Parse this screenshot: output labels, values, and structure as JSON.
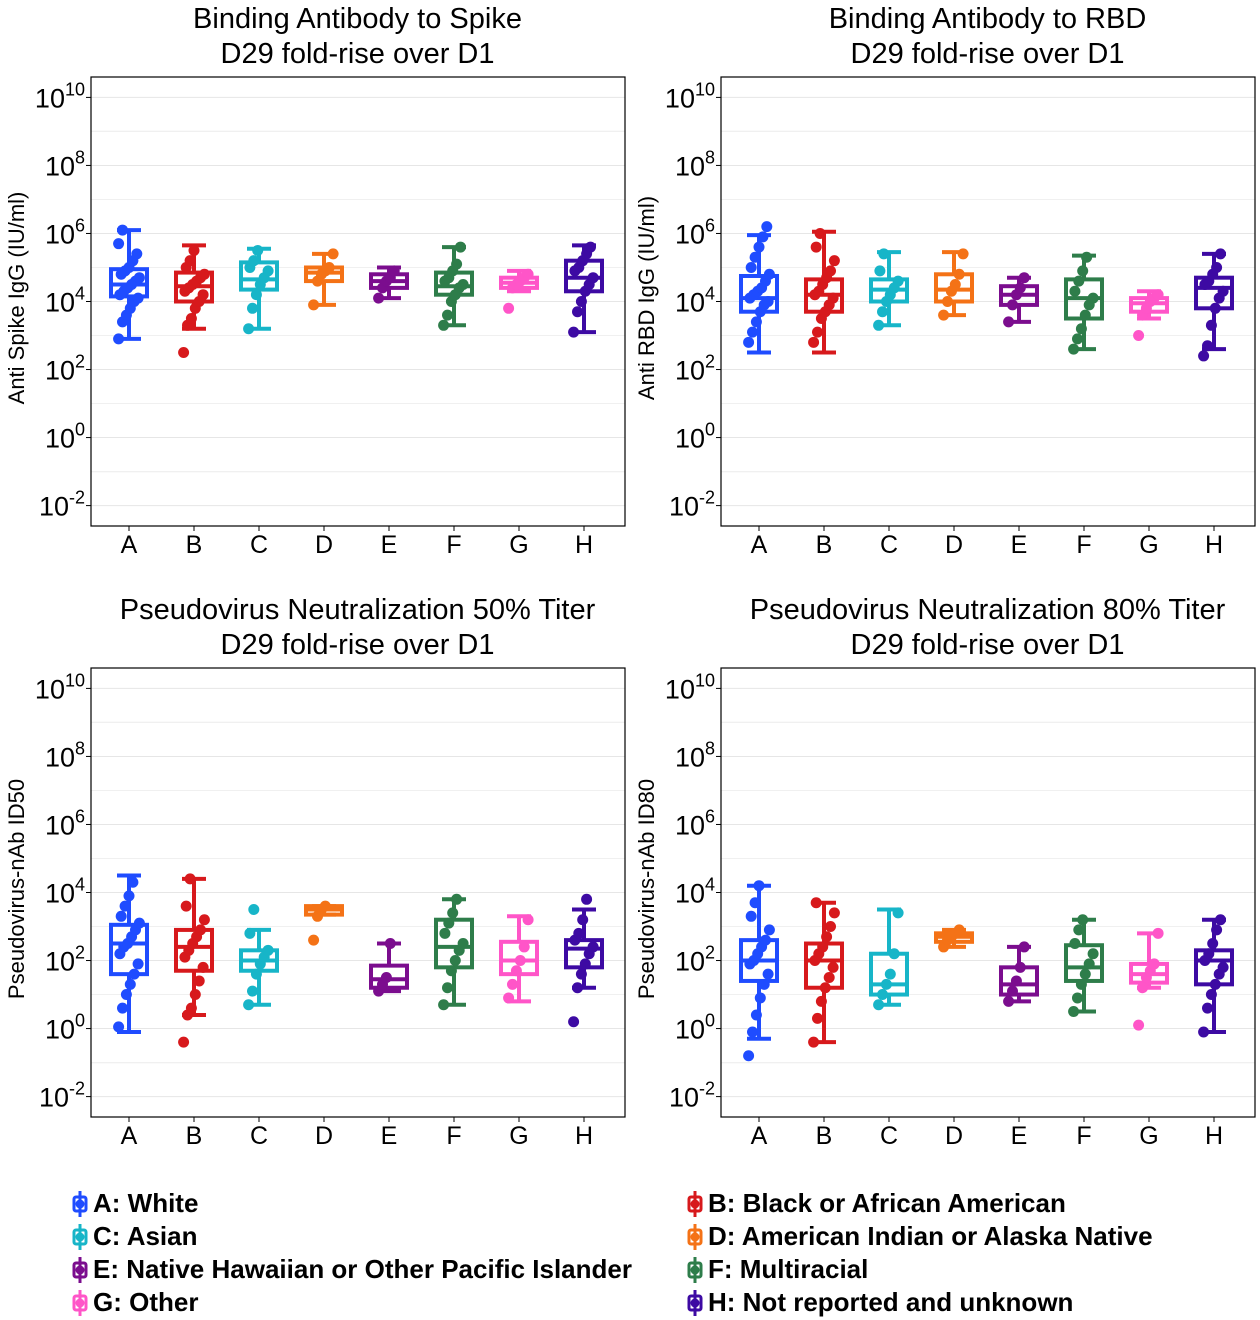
{
  "categories": [
    "A",
    "B",
    "C",
    "D",
    "E",
    "F",
    "G",
    "H"
  ],
  "colors": [
    "#1f4cff",
    "#d7191c",
    "#17b5c8",
    "#f47216",
    "#7b0d8e",
    "#2e7d4a",
    "#ff55c8",
    "#3d0aa3"
  ],
  "panels": [
    {
      "title_line1": "Binding Antibody to Spike",
      "title_line2": "D29 fold-rise over D1",
      "ylabel": "Anti Spike IgG (IU/ml)"
    },
    {
      "title_line1": "Binding Antibody to RBD",
      "title_line2": "D29 fold-rise over D1",
      "ylabel": "Anti RBD IgG (IU/ml)"
    },
    {
      "title_line1": "Pseudovirus Neutralization 50% Titer",
      "title_line2": "D29 fold-rise over D1",
      "ylabel": "Pseudovirus-nAb ID50"
    },
    {
      "title_line1": "Pseudovirus Neutralization 80% Titer",
      "title_line2": "D29 fold-rise over D1",
      "ylabel": "Pseudovirus-nAb ID80"
    }
  ],
  "legend": [
    {
      "key": "A",
      "label": "A: White"
    },
    {
      "key": "B",
      "label": "B: Black or African American"
    },
    {
      "key": "C",
      "label": "C: Asian"
    },
    {
      "key": "D",
      "label": "D: American Indian or Alaska Native"
    },
    {
      "key": "E",
      "label": "E: Native Hawaiian or Other Pacific Islander"
    },
    {
      "key": "F",
      "label": "F: Multiracial"
    },
    {
      "key": "G",
      "label": "G: Other"
    },
    {
      "key": "H",
      "label": "H: Not reported and unknown"
    }
  ],
  "chart_data": [
    {
      "type": "box",
      "title": "Binding Antibody to Spike\nD29 fold-rise over D1",
      "ylabel": "Anti Spike IgG (IU/ml)",
      "yscale": "log10",
      "ylim_log10": [
        -2.6,
        10.6
      ],
      "ytick_exponents": [
        -2,
        0,
        2,
        4,
        6,
        8,
        10
      ],
      "grid": true,
      "categories": [
        "A",
        "B",
        "C",
        "D",
        "E",
        "F",
        "G",
        "H"
      ],
      "boxes_log10": [
        {
          "cat": "A",
          "lo": 2.9,
          "q1": 4.15,
          "med": 4.5,
          "q3": 4.95,
          "hi": 6.1,
          "points": [
            2.9,
            3.4,
            3.6,
            3.8,
            4.0,
            4.1,
            4.2,
            4.3,
            4.4,
            4.5,
            4.6,
            4.7,
            4.8,
            4.9,
            5.0,
            5.2,
            5.4,
            5.7,
            6.1
          ]
        },
        {
          "cat": "B",
          "lo": 3.2,
          "q1": 4.0,
          "med": 4.45,
          "q3": 4.85,
          "hi": 5.65,
          "points": [
            2.5,
            3.3,
            3.5,
            3.8,
            4.0,
            4.2,
            4.3,
            4.4,
            4.5,
            4.6,
            4.7,
            4.8,
            5.0,
            5.2,
            5.5
          ]
        },
        {
          "cat": "C",
          "lo": 3.2,
          "q1": 4.35,
          "med": 4.65,
          "q3": 5.15,
          "hi": 5.55,
          "points": [
            3.2,
            3.8,
            4.2,
            4.5,
            4.7,
            4.9,
            5.0,
            5.2,
            5.5
          ]
        },
        {
          "cat": "D",
          "lo": 3.9,
          "q1": 4.6,
          "med": 4.85,
          "q3": 5.0,
          "hi": 5.4,
          "points": [
            3.9,
            4.6,
            4.8,
            4.9,
            5.0,
            5.4
          ]
        },
        {
          "cat": "E",
          "lo": 4.1,
          "q1": 4.4,
          "med": 4.6,
          "q3": 4.8,
          "hi": 5.0,
          "points": [
            4.1,
            4.4,
            4.6,
            4.7,
            4.9
          ]
        },
        {
          "cat": "F",
          "lo": 3.3,
          "q1": 4.2,
          "med": 4.45,
          "q3": 4.85,
          "hi": 5.6,
          "points": [
            3.3,
            3.6,
            4.0,
            4.2,
            4.4,
            4.5,
            4.6,
            4.7,
            4.9,
            5.1,
            5.6
          ]
        },
        {
          "cat": "G",
          "lo": 4.3,
          "q1": 4.4,
          "med": 4.55,
          "q3": 4.7,
          "hi": 4.9,
          "points": [
            3.8,
            4.4,
            4.5,
            4.6,
            4.7,
            4.8
          ]
        },
        {
          "cat": "H",
          "lo": 3.1,
          "q1": 4.3,
          "med": 4.7,
          "q3": 5.2,
          "hi": 5.65,
          "points": [
            3.1,
            3.7,
            4.0,
            4.3,
            4.5,
            4.7,
            4.9,
            5.0,
            5.2,
            5.4,
            5.6
          ]
        }
      ]
    },
    {
      "type": "box",
      "title": "Binding Antibody to RBD\nD29 fold-rise over D1",
      "ylabel": "Anti RBD IgG (IU/ml)",
      "yscale": "log10",
      "ylim_log10": [
        -2.6,
        10.6
      ],
      "ytick_exponents": [
        -2,
        0,
        2,
        4,
        6,
        8,
        10
      ],
      "grid": true,
      "categories": [
        "A",
        "B",
        "C",
        "D",
        "E",
        "F",
        "G",
        "H"
      ],
      "boxes_log10": [
        {
          "cat": "A",
          "lo": 2.5,
          "q1": 3.7,
          "med": 4.1,
          "q3": 4.75,
          "hi": 5.95,
          "points": [
            2.8,
            3.1,
            3.4,
            3.7,
            3.9,
            4.0,
            4.1,
            4.2,
            4.3,
            4.4,
            4.6,
            4.8,
            5.0,
            5.3,
            5.6,
            5.9,
            6.2
          ]
        },
        {
          "cat": "B",
          "lo": 2.5,
          "q1": 3.7,
          "med": 4.2,
          "q3": 4.65,
          "hi": 6.05,
          "points": [
            2.8,
            3.1,
            3.5,
            3.7,
            3.9,
            4.1,
            4.2,
            4.3,
            4.5,
            4.7,
            4.9,
            5.2,
            5.6,
            6.0
          ]
        },
        {
          "cat": "C",
          "lo": 3.3,
          "q1": 4.0,
          "med": 4.35,
          "q3": 4.65,
          "hi": 5.45,
          "points": [
            3.3,
            3.7,
            4.0,
            4.2,
            4.4,
            4.6,
            4.9,
            5.4
          ]
        },
        {
          "cat": "D",
          "lo": 3.6,
          "q1": 4.0,
          "med": 4.35,
          "q3": 4.8,
          "hi": 5.45,
          "points": [
            3.6,
            4.0,
            4.3,
            4.5,
            4.8,
            5.4
          ]
        },
        {
          "cat": "E",
          "lo": 3.4,
          "q1": 3.9,
          "med": 4.2,
          "q3": 4.45,
          "hi": 4.7,
          "points": [
            3.4,
            3.9,
            4.2,
            4.4,
            4.7
          ]
        },
        {
          "cat": "F",
          "lo": 2.6,
          "q1": 3.5,
          "med": 4.1,
          "q3": 4.65,
          "hi": 5.35,
          "points": [
            2.6,
            2.9,
            3.2,
            3.6,
            3.9,
            4.1,
            4.3,
            4.6,
            4.9,
            5.3
          ]
        },
        {
          "cat": "G",
          "lo": 3.5,
          "q1": 3.7,
          "med": 3.95,
          "q3": 4.1,
          "hi": 4.3,
          "points": [
            3.0,
            3.6,
            3.8,
            4.0,
            4.1,
            4.2
          ]
        },
        {
          "cat": "H",
          "lo": 2.6,
          "q1": 3.8,
          "med": 4.4,
          "q3": 4.7,
          "hi": 5.4,
          "points": [
            2.4,
            2.7,
            3.3,
            3.8,
            4.1,
            4.3,
            4.5,
            4.6,
            4.8,
            5.0,
            5.4
          ]
        }
      ]
    },
    {
      "type": "box",
      "title": "Pseudovirus Neutralization 50% Titer\nD29 fold-rise over D1",
      "ylabel": "Pseudovirus-nAb ID50",
      "yscale": "log10",
      "ylim_log10": [
        -2.6,
        10.6
      ],
      "ytick_exponents": [
        -2,
        0,
        2,
        4,
        6,
        8,
        10
      ],
      "grid": true,
      "categories": [
        "A",
        "B",
        "C",
        "D",
        "E",
        "F",
        "G",
        "H"
      ],
      "boxes_log10": [
        {
          "cat": "A",
          "lo": -0.1,
          "q1": 1.6,
          "med": 2.5,
          "q3": 3.05,
          "hi": 4.5,
          "points": [
            0.05,
            0.6,
            1.0,
            1.3,
            1.6,
            1.9,
            2.2,
            2.4,
            2.5,
            2.7,
            2.9,
            3.1,
            3.3,
            3.6,
            3.9,
            4.3
          ]
        },
        {
          "cat": "B",
          "lo": 0.4,
          "q1": 1.7,
          "med": 2.4,
          "q3": 2.9,
          "hi": 4.4,
          "points": [
            -0.4,
            0.4,
            0.6,
            1.0,
            1.4,
            1.8,
            2.1,
            2.3,
            2.5,
            2.7,
            2.9,
            3.2,
            3.6,
            4.4
          ]
        },
        {
          "cat": "C",
          "lo": 0.7,
          "q1": 1.7,
          "med": 2.0,
          "q3": 2.3,
          "hi": 2.9,
          "points": [
            0.7,
            1.1,
            1.6,
            1.9,
            2.1,
            2.3,
            2.8,
            3.5
          ]
        },
        {
          "cat": "D",
          "lo": 3.35,
          "q1": 3.35,
          "med": 3.5,
          "q3": 3.6,
          "hi": 3.6,
          "points": [
            2.6,
            3.3,
            3.5,
            3.6
          ]
        },
        {
          "cat": "E",
          "lo": 1.1,
          "q1": 1.2,
          "med": 1.45,
          "q3": 1.85,
          "hi": 2.5,
          "points": [
            1.1,
            1.3,
            1.5,
            2.5
          ]
        },
        {
          "cat": "F",
          "lo": 0.7,
          "q1": 1.8,
          "med": 2.4,
          "q3": 3.2,
          "hi": 3.8,
          "points": [
            0.7,
            1.2,
            1.7,
            2.0,
            2.3,
            2.5,
            2.8,
            3.1,
            3.4,
            3.8
          ]
        },
        {
          "cat": "G",
          "lo": 0.8,
          "q1": 1.6,
          "med": 2.0,
          "q3": 2.55,
          "hi": 3.3,
          "points": [
            0.9,
            1.3,
            1.7,
            2.0,
            2.4,
            3.2
          ]
        },
        {
          "cat": "H",
          "lo": 1.2,
          "q1": 1.8,
          "med": 2.35,
          "q3": 2.6,
          "hi": 3.5,
          "points": [
            0.2,
            1.2,
            1.6,
            1.9,
            2.2,
            2.4,
            2.6,
            2.8,
            3.2,
            3.8
          ]
        }
      ]
    },
    {
      "type": "box",
      "title": "Pseudovirus Neutralization 80% Titer\nD29 fold-rise over D1",
      "ylabel": "Pseudovirus-nAb ID80",
      "yscale": "log10",
      "ylim_log10": [
        -2.6,
        10.6
      ],
      "ytick_exponents": [
        -2,
        0,
        2,
        4,
        6,
        8,
        10
      ],
      "grid": true,
      "categories": [
        "A",
        "B",
        "C",
        "D",
        "E",
        "F",
        "G",
        "H"
      ],
      "boxes_log10": [
        {
          "cat": "A",
          "lo": -0.3,
          "q1": 1.4,
          "med": 2.0,
          "q3": 2.6,
          "hi": 4.2,
          "points": [
            -0.8,
            -0.1,
            0.4,
            0.9,
            1.3,
            1.6,
            1.9,
            2.0,
            2.2,
            2.4,
            2.6,
            2.9,
            3.3,
            3.7,
            4.2
          ]
        },
        {
          "cat": "B",
          "lo": -0.4,
          "q1": 1.2,
          "med": 2.0,
          "q3": 2.5,
          "hi": 3.7,
          "points": [
            -0.4,
            0.3,
            0.8,
            1.2,
            1.5,
            1.8,
            2.0,
            2.2,
            2.4,
            2.7,
            3.0,
            3.4,
            3.7
          ]
        },
        {
          "cat": "C",
          "lo": 0.7,
          "q1": 1.0,
          "med": 1.3,
          "q3": 2.2,
          "hi": 3.5,
          "points": [
            0.7,
            1.0,
            1.3,
            1.6,
            2.2,
            3.4
          ]
        },
        {
          "cat": "D",
          "lo": 2.4,
          "q1": 2.55,
          "med": 2.7,
          "q3": 2.8,
          "hi": 2.9,
          "points": [
            2.4,
            2.6,
            2.7,
            2.8,
            2.9
          ]
        },
        {
          "cat": "E",
          "lo": 0.8,
          "q1": 1.0,
          "med": 1.3,
          "q3": 1.8,
          "hi": 2.4,
          "points": [
            0.8,
            1.1,
            1.4,
            1.8,
            2.4
          ]
        },
        {
          "cat": "F",
          "lo": 0.5,
          "q1": 1.4,
          "med": 1.8,
          "q3": 2.45,
          "hi": 3.2,
          "points": [
            0.5,
            0.9,
            1.3,
            1.6,
            1.9,
            2.2,
            2.5,
            2.9,
            3.2
          ]
        },
        {
          "cat": "G",
          "lo": 1.2,
          "q1": 1.35,
          "med": 1.6,
          "q3": 1.9,
          "hi": 2.8,
          "points": [
            0.1,
            1.2,
            1.5,
            1.7,
            1.9,
            2.8
          ]
        },
        {
          "cat": "H",
          "lo": -0.1,
          "q1": 1.3,
          "med": 2.0,
          "q3": 2.3,
          "hi": 3.2,
          "points": [
            -0.1,
            0.6,
            1.0,
            1.3,
            1.6,
            1.8,
            2.0,
            2.2,
            2.5,
            2.9,
            3.2
          ]
        }
      ]
    }
  ]
}
